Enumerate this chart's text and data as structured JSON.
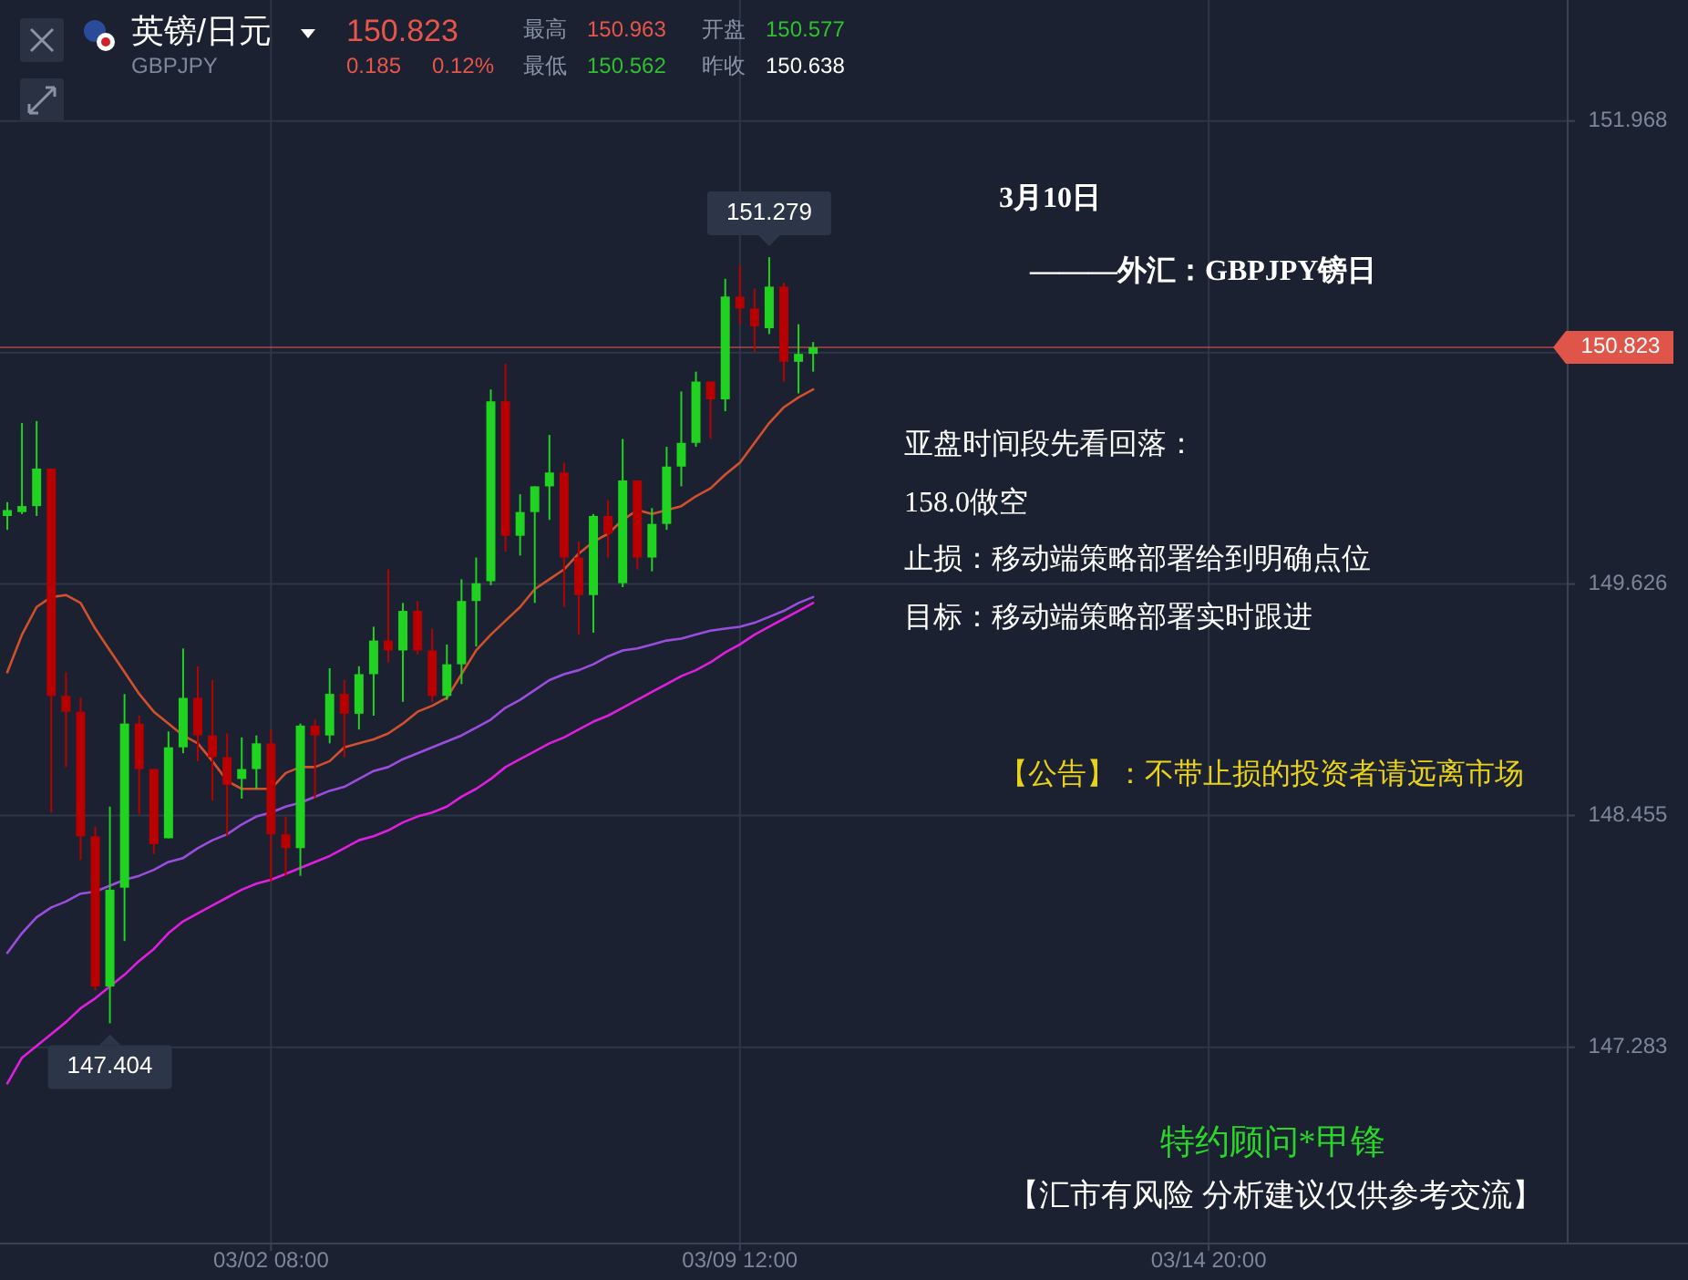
{
  "chart_data": {
    "type": "candlestick",
    "categories": [
      null,
      null,
      null,
      null,
      null,
      null,
      null,
      null,
      null,
      null,
      null,
      null,
      null,
      null,
      null,
      null,
      null,
      null,
      "03/02 08:00",
      null,
      null,
      null,
      null,
      null,
      null,
      null,
      null,
      null,
      null,
      null,
      null,
      null,
      null,
      null,
      null,
      null,
      null,
      null,
      null,
      null,
      null,
      null,
      null,
      null,
      null,
      null,
      null,
      null,
      null,
      null,
      "03/09 12:00",
      null,
      null,
      null,
      null,
      null,
      null,
      null,
      null,
      null,
      null,
      null,
      null,
      null,
      null,
      null,
      null,
      null,
      null,
      null,
      null,
      null,
      null,
      null,
      null,
      null,
      null,
      null,
      null,
      null,
      null,
      null,
      "03/14 20:00",
      null,
      null,
      null,
      null,
      null,
      null,
      null,
      null,
      null,
      null,
      null,
      null,
      null,
      null,
      null,
      null,
      null,
      null,
      null,
      null,
      null,
      null,
      null,
      null
    ],
    "ohlc": [
      [
        149.97,
        150.04,
        149.9,
        150.0
      ],
      [
        149.99,
        150.44,
        149.98,
        150.02
      ],
      [
        150.02,
        150.45,
        149.97,
        150.21
      ],
      [
        150.21,
        150.21,
        148.47,
        149.06
      ],
      [
        149.06,
        149.18,
        148.7,
        148.98
      ],
      [
        148.98,
        149.05,
        148.23,
        148.35
      ],
      [
        148.35,
        148.4,
        147.57,
        147.59
      ],
      [
        147.59,
        148.5,
        147.404,
        148.08
      ],
      [
        148.09,
        149.07,
        147.82,
        148.92
      ],
      [
        148.92,
        148.96,
        148.46,
        148.69
      ],
      [
        148.69,
        148.69,
        148.26,
        148.31
      ],
      [
        148.34,
        148.88,
        148.34,
        148.8
      ],
      [
        148.8,
        149.3,
        148.77,
        149.05
      ],
      [
        149.05,
        149.21,
        148.73,
        148.86
      ],
      [
        148.86,
        149.14,
        148.53,
        148.75
      ],
      [
        148.75,
        148.87,
        148.35,
        148.61
      ],
      [
        148.64,
        148.85,
        148.54,
        148.69
      ],
      [
        148.69,
        148.86,
        148.59,
        148.82
      ],
      [
        148.82,
        148.89,
        148.12,
        148.36
      ],
      [
        148.36,
        148.45,
        148.15,
        148.29
      ],
      [
        148.29,
        148.92,
        148.15,
        148.91
      ],
      [
        148.91,
        148.94,
        148.54,
        148.86
      ],
      [
        148.86,
        149.2,
        148.82,
        149.07
      ],
      [
        149.07,
        149.14,
        148.75,
        148.97
      ],
      [
        148.97,
        149.21,
        148.89,
        149.17
      ],
      [
        149.17,
        149.41,
        148.96,
        149.34
      ],
      [
        149.34,
        149.7,
        149.23,
        149.29
      ],
      [
        149.29,
        149.53,
        149.03,
        149.49
      ],
      [
        149.49,
        149.54,
        149.27,
        149.29
      ],
      [
        149.29,
        149.4,
        149.03,
        149.06
      ],
      [
        149.06,
        149.32,
        149.04,
        149.22
      ],
      [
        149.22,
        149.65,
        149.12,
        149.54
      ],
      [
        149.54,
        149.76,
        149.31,
        149.63
      ],
      [
        149.64,
        150.61,
        149.62,
        150.55
      ],
      [
        150.55,
        150.74,
        149.79,
        149.87
      ],
      [
        149.87,
        150.08,
        149.77,
        149.99
      ],
      [
        149.99,
        150.12,
        149.53,
        150.12
      ],
      [
        150.12,
        150.38,
        149.95,
        150.19
      ],
      [
        150.19,
        150.24,
        149.51,
        149.76
      ],
      [
        149.76,
        149.84,
        149.37,
        149.57
      ],
      [
        149.57,
        149.98,
        149.38,
        149.97
      ],
      [
        149.97,
        150.05,
        149.76,
        149.88
      ],
      [
        149.63,
        150.36,
        149.61,
        150.15
      ],
      [
        150.15,
        150.15,
        149.7,
        149.76
      ],
      [
        149.76,
        150.01,
        149.69,
        149.93
      ],
      [
        149.93,
        150.32,
        149.9,
        150.22
      ],
      [
        150.22,
        150.6,
        150.12,
        150.34
      ],
      [
        150.34,
        150.7,
        150.32,
        150.65
      ],
      [
        150.65,
        150.65,
        150.36,
        150.56
      ],
      [
        150.56,
        151.17,
        150.5,
        151.08
      ],
      [
        151.08,
        151.24,
        150.94,
        151.02
      ],
      [
        151.02,
        151.12,
        150.8,
        150.93
      ],
      [
        150.92,
        151.279,
        150.89,
        151.13
      ],
      [
        151.13,
        151.15,
        150.65,
        150.75
      ],
      [
        150.75,
        150.94,
        150.59,
        150.79
      ],
      [
        150.79,
        150.85,
        150.7,
        150.823
      ],
      null,
      null,
      null,
      null,
      null,
      null,
      null,
      null,
      null,
      null,
      null,
      null,
      null,
      null,
      null,
      null,
      null,
      null,
      null,
      null,
      null,
      null,
      null,
      null,
      null,
      null,
      null,
      null,
      null,
      null,
      null,
      null,
      null,
      null,
      null,
      null,
      null,
      null,
      null,
      null,
      null,
      null,
      null,
      null,
      null,
      null,
      null,
      null,
      null,
      null,
      null
    ],
    "series": [
      {
        "type": "line",
        "color": "#d2512c",
        "values": [
          149.18,
          149.37,
          149.51,
          149.56,
          149.57,
          149.53,
          149.4,
          149.29,
          149.18,
          149.07,
          148.98,
          148.92,
          148.86,
          148.82,
          148.73,
          148.63,
          148.59,
          148.59,
          148.59,
          148.67,
          148.7,
          148.7,
          148.73,
          148.8,
          148.82,
          148.84,
          148.87,
          148.92,
          148.98,
          149.01,
          149.05,
          149.17,
          149.29,
          149.37,
          149.44,
          149.51,
          149.6,
          149.65,
          149.7,
          149.78,
          149.84,
          149.88,
          149.95,
          150.0,
          149.98,
          150.0,
          150.02,
          150.07,
          150.11,
          150.18,
          150.24,
          150.34,
          150.44,
          150.52,
          150.57,
          150.61,
          null,
          null,
          null,
          null,
          null,
          null,
          null,
          null,
          null,
          null,
          null,
          null,
          null,
          null,
          null,
          null,
          null,
          null,
          null,
          null,
          null,
          null,
          null,
          null,
          null,
          null,
          null,
          null,
          null,
          null,
          null,
          null,
          null,
          null,
          null,
          null,
          null,
          null,
          null,
          null,
          null,
          null,
          null,
          null,
          null,
          null,
          null,
          null,
          null,
          null,
          null
        ]
      },
      {
        "type": "line",
        "color": "#9b4de0",
        "values": [
          147.76,
          147.86,
          147.94,
          147.99,
          148.02,
          148.06,
          148.07,
          148.1,
          148.13,
          148.15,
          148.18,
          148.22,
          148.24,
          148.29,
          148.33,
          148.36,
          148.41,
          148.45,
          148.47,
          148.5,
          148.52,
          148.55,
          148.58,
          148.6,
          148.64,
          148.68,
          148.7,
          148.74,
          148.77,
          148.8,
          148.83,
          148.86,
          148.9,
          148.94,
          149.0,
          149.04,
          149.09,
          149.14,
          149.17,
          149.19,
          149.22,
          149.26,
          149.29,
          149.3,
          149.32,
          149.34,
          149.35,
          149.37,
          149.39,
          149.4,
          149.41,
          149.43,
          149.46,
          149.49,
          149.53,
          149.56,
          null,
          null,
          null,
          null,
          null,
          null,
          null,
          null,
          null,
          null,
          null,
          null,
          null,
          null,
          null,
          null,
          null,
          null,
          null,
          null,
          null,
          null,
          null,
          null,
          null,
          null,
          null,
          null,
          null,
          null,
          null,
          null,
          null,
          null,
          null,
          null,
          null,
          null,
          null,
          null,
          null,
          null,
          null,
          null,
          null,
          null,
          null,
          null,
          null,
          null,
          null
        ]
      },
      {
        "type": "line",
        "color": "#e01ee0",
        "values": [
          147.1,
          147.23,
          147.29,
          147.35,
          147.41,
          147.48,
          147.53,
          147.59,
          147.65,
          147.72,
          147.78,
          147.86,
          147.92,
          147.96,
          148.0,
          148.04,
          148.08,
          148.11,
          148.13,
          148.16,
          148.19,
          148.22,
          148.25,
          148.29,
          148.33,
          148.35,
          148.38,
          148.42,
          148.45,
          148.47,
          148.5,
          148.55,
          148.59,
          148.64,
          148.7,
          148.74,
          148.78,
          148.82,
          148.85,
          148.89,
          148.93,
          148.96,
          149.0,
          149.04,
          149.08,
          149.12,
          149.16,
          149.19,
          149.23,
          149.28,
          149.32,
          149.37,
          149.41,
          149.45,
          149.49,
          149.53,
          null,
          null,
          null,
          null,
          null,
          null,
          null,
          null,
          null,
          null,
          null,
          null,
          null,
          null,
          null,
          null,
          null,
          null,
          null,
          null,
          null,
          null,
          null,
          null,
          null,
          null,
          null,
          null,
          null,
          null,
          null,
          null,
          null,
          null,
          null,
          null,
          null,
          null,
          null,
          null,
          null,
          null,
          null,
          null,
          null,
          null,
          null,
          null,
          null,
          null,
          null
        ]
      }
    ],
    "ylim": [
      146.29,
      152.58
    ],
    "yticks": [
      151.968,
      {
        "value": 150.797,
        "label": null
      },
      149.626,
      148.455,
      147.283
    ],
    "grid": true,
    "ref_lines": [
      {
        "axis": "y",
        "value": 150.823,
        "label": "150.823",
        "color": "#e0554a"
      }
    ],
    "annotations": [
      "英镑/日元",
      "GBPJPY",
      "150.823",
      "0.185",
      "0.12%",
      "最高",
      "150.963",
      "开盘",
      "150.577",
      "最低",
      "150.562",
      "昨收",
      "150.638",
      "3月10日",
      "———外汇：GBPJPY镑日",
      "亚盘时间段先看回落：",
      "158.0做空",
      "止损：移动端策略部署给到明确点位",
      "目标：移动端策略部署实时跟进",
      "【公告】：不带止损的投资者请远离市场",
      "特约顾问*甲锋",
      "【汇市有风险  分析建议仅供参考交流】",
      {
        "text": "151.279",
        "y": 151.279
      },
      {
        "text": "147.404",
        "y": 147.404
      }
    ]
  }
}
